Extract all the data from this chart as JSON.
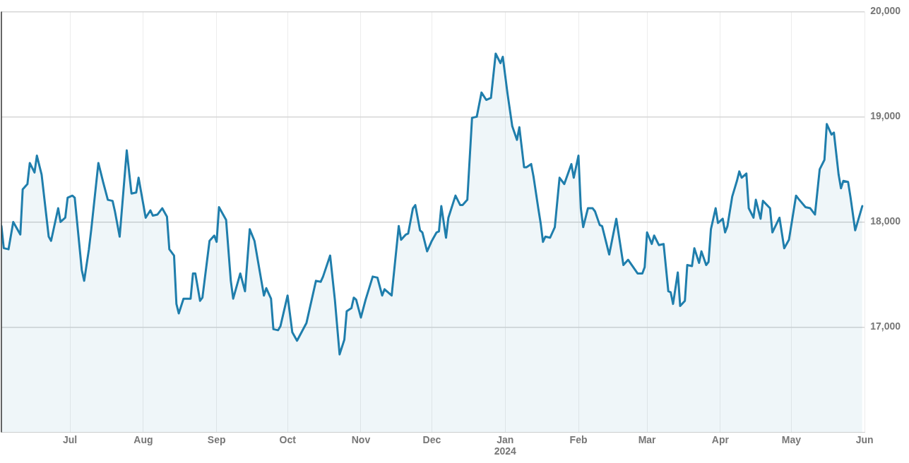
{
  "chart_data": {
    "type": "area",
    "legend": false,
    "grid": true,
    "marker": "none",
    "line_style": "solid",
    "ylim": [
      16000,
      20000
    ],
    "yticks": [
      {
        "value": 17000,
        "label": "17,000"
      },
      {
        "value": 18000,
        "label": "18,000"
      },
      {
        "value": 19000,
        "label": "19,000"
      },
      {
        "value": 20000,
        "label": "20,000"
      }
    ],
    "xlim": [
      "2023-06-02",
      "2024-06-01"
    ],
    "xticks": [
      {
        "value": "2023-07-01",
        "label": "Jul"
      },
      {
        "value": "2023-08-01",
        "label": "Aug"
      },
      {
        "value": "2023-09-01",
        "label": "Sep"
      },
      {
        "value": "2023-10-01",
        "label": "Oct"
      },
      {
        "value": "2023-11-01",
        "label": "Nov"
      },
      {
        "value": "2023-12-01",
        "label": "Dec"
      },
      {
        "value": "2024-01-01",
        "label": "Jan\n2024"
      },
      {
        "value": "2024-02-01",
        "label": "Feb"
      },
      {
        "value": "2024-03-01",
        "label": "Mar"
      },
      {
        "value": "2024-04-01",
        "label": "Apr"
      },
      {
        "value": "2024-05-01",
        "label": "May"
      },
      {
        "value": "2024-06-01",
        "label": "Jun"
      }
    ],
    "series": [
      {
        "color": "#1f7eac",
        "x": [
          "2023-06-02",
          "2023-06-03",
          "2023-06-05",
          "2023-06-07",
          "2023-06-10",
          "2023-06-11",
          "2023-06-13",
          "2023-06-14",
          "2023-06-16",
          "2023-06-17",
          "2023-06-19",
          "2023-06-22",
          "2023-06-23",
          "2023-06-26",
          "2023-06-27",
          "2023-06-29",
          "2023-06-30",
          "2023-07-02",
          "2023-07-03",
          "2023-07-06",
          "2023-07-07",
          "2023-07-09",
          "2023-07-10",
          "2023-07-13",
          "2023-07-15",
          "2023-07-17",
          "2023-07-19",
          "2023-07-20",
          "2023-07-22",
          "2023-07-25",
          "2023-07-27",
          "2023-07-29",
          "2023-07-30",
          "2023-08-02",
          "2023-08-04",
          "2023-08-05",
          "2023-08-07",
          "2023-08-09",
          "2023-08-11",
          "2023-08-12",
          "2023-08-14",
          "2023-08-15",
          "2023-08-16",
          "2023-08-18",
          "2023-08-21",
          "2023-08-22",
          "2023-08-23",
          "2023-08-25",
          "2023-08-26",
          "2023-08-29",
          "2023-08-31",
          "2023-09-01",
          "2023-09-02",
          "2023-09-05",
          "2023-09-07",
          "2023-09-08",
          "2023-09-11",
          "2023-09-13",
          "2023-09-15",
          "2023-09-17",
          "2023-09-21",
          "2023-09-22",
          "2023-09-24",
          "2023-09-25",
          "2023-09-27",
          "2023-09-28",
          "2023-10-01",
          "2023-10-03",
          "2023-10-05",
          "2023-10-09",
          "2023-10-13",
          "2023-10-15",
          "2023-10-16",
          "2023-10-19",
          "2023-10-21",
          "2023-10-23",
          "2023-10-25",
          "2023-10-26",
          "2023-10-28",
          "2023-10-29",
          "2023-10-30",
          "2023-11-01",
          "2023-11-03",
          "2023-11-06",
          "2023-11-08",
          "2023-11-10",
          "2023-11-11",
          "2023-11-14",
          "2023-11-17",
          "2023-11-18",
          "2023-11-20",
          "2023-11-21",
          "2023-11-23",
          "2023-11-24",
          "2023-11-26",
          "2023-11-27",
          "2023-11-29",
          "2023-12-01",
          "2023-12-03",
          "2023-12-04",
          "2023-12-05",
          "2023-12-07",
          "2023-12-08",
          "2023-12-11",
          "2023-12-13",
          "2023-12-14",
          "2023-12-16",
          "2023-12-18",
          "2023-12-20",
          "2023-12-22",
          "2023-12-24",
          "2023-12-26",
          "2023-12-28",
          "2023-12-30",
          "2023-12-31",
          "2024-01-02",
          "2024-01-04",
          "2024-01-06",
          "2024-01-07",
          "2024-01-09",
          "2024-01-10",
          "2024-01-12",
          "2024-01-13",
          "2024-01-15",
          "2024-01-16",
          "2024-01-17",
          "2024-01-18",
          "2024-01-20",
          "2024-01-22",
          "2024-01-24",
          "2024-01-26",
          "2024-01-29",
          "2024-01-30",
          "2024-02-01",
          "2024-02-02",
          "2024-02-03",
          "2024-02-05",
          "2024-02-07",
          "2024-02-08",
          "2024-02-10",
          "2024-02-11",
          "2024-02-14",
          "2024-02-17",
          "2024-02-20",
          "2024-02-22",
          "2024-02-26",
          "2024-02-28",
          "2024-02-29",
          "2024-03-01",
          "2024-03-03",
          "2024-03-04",
          "2024-03-06",
          "2024-03-08",
          "2024-03-10",
          "2024-03-11",
          "2024-03-12",
          "2024-03-14",
          "2024-03-15",
          "2024-03-17",
          "2024-03-18",
          "2024-03-20",
          "2024-03-21",
          "2024-03-23",
          "2024-03-24",
          "2024-03-26",
          "2024-03-27",
          "2024-03-28",
          "2024-03-30",
          "2024-03-31",
          "2024-04-02",
          "2024-04-03",
          "2024-04-04",
          "2024-04-06",
          "2024-04-08",
          "2024-04-09",
          "2024-04-10",
          "2024-04-12",
          "2024-04-13",
          "2024-04-15",
          "2024-04-16",
          "2024-04-18",
          "2024-04-19",
          "2024-04-22",
          "2024-04-23",
          "2024-04-26",
          "2024-04-28",
          "2024-04-30",
          "2024-05-03",
          "2024-05-04",
          "2024-05-07",
          "2024-05-09",
          "2024-05-11",
          "2024-05-13",
          "2024-05-15",
          "2024-05-16",
          "2024-05-18",
          "2024-05-19",
          "2024-05-21",
          "2024-05-22",
          "2024-05-23",
          "2024-05-25",
          "2024-05-26",
          "2024-05-28",
          "2024-05-31"
        ],
        "values": [
          17960,
          17750,
          17740,
          18000,
          17880,
          18310,
          18360,
          18560,
          18470,
          18630,
          18450,
          17860,
          17820,
          18130,
          18000,
          18040,
          18230,
          18250,
          18230,
          17540,
          17440,
          17740,
          17930,
          18560,
          18380,
          18210,
          18200,
          18100,
          17860,
          18680,
          18270,
          18280,
          18420,
          18040,
          18110,
          18060,
          18070,
          18130,
          18050,
          17740,
          17680,
          17220,
          17130,
          17270,
          17270,
          17510,
          17510,
          17250,
          17280,
          17820,
          17870,
          17810,
          18140,
          18020,
          17440,
          17270,
          17510,
          17340,
          17930,
          17820,
          17300,
          17370,
          17270,
          16980,
          16970,
          17010,
          17300,
          16950,
          16870,
          17040,
          17440,
          17430,
          17480,
          17680,
          17260,
          16740,
          16880,
          17150,
          17180,
          17280,
          17260,
          17090,
          17260,
          17480,
          17470,
          17300,
          17360,
          17300,
          17960,
          17830,
          17880,
          17890,
          18130,
          18160,
          17920,
          17900,
          17720,
          17820,
          17900,
          17910,
          18150,
          17850,
          18040,
          18250,
          18160,
          18160,
          18210,
          18990,
          19000,
          19230,
          19160,
          19180,
          19600,
          19510,
          19570,
          19220,
          18910,
          18780,
          18900,
          18520,
          18520,
          18550,
          18430,
          18130,
          17990,
          17810,
          17860,
          17850,
          17950,
          18420,
          18360,
          18550,
          18420,
          18630,
          18130,
          17950,
          18130,
          18130,
          18100,
          17970,
          17960,
          17690,
          18030,
          17590,
          17640,
          17510,
          17510,
          17570,
          17900,
          17790,
          17870,
          17780,
          17790,
          17340,
          17330,
          17220,
          17520,
          17200,
          17250,
          17590,
          17580,
          17750,
          17610,
          17720,
          17590,
          17620,
          17930,
          18130,
          17990,
          18030,
          17900,
          17960,
          18240,
          18390,
          18480,
          18420,
          18460,
          18130,
          18040,
          18210,
          18030,
          18200,
          18130,
          17900,
          18040,
          17750,
          17830,
          18250,
          18220,
          18140,
          18130,
          18070,
          18500,
          18590,
          18930,
          18830,
          18850,
          18450,
          18320,
          18390,
          18380,
          18240,
          17920,
          18150
        ]
      }
    ]
  }
}
